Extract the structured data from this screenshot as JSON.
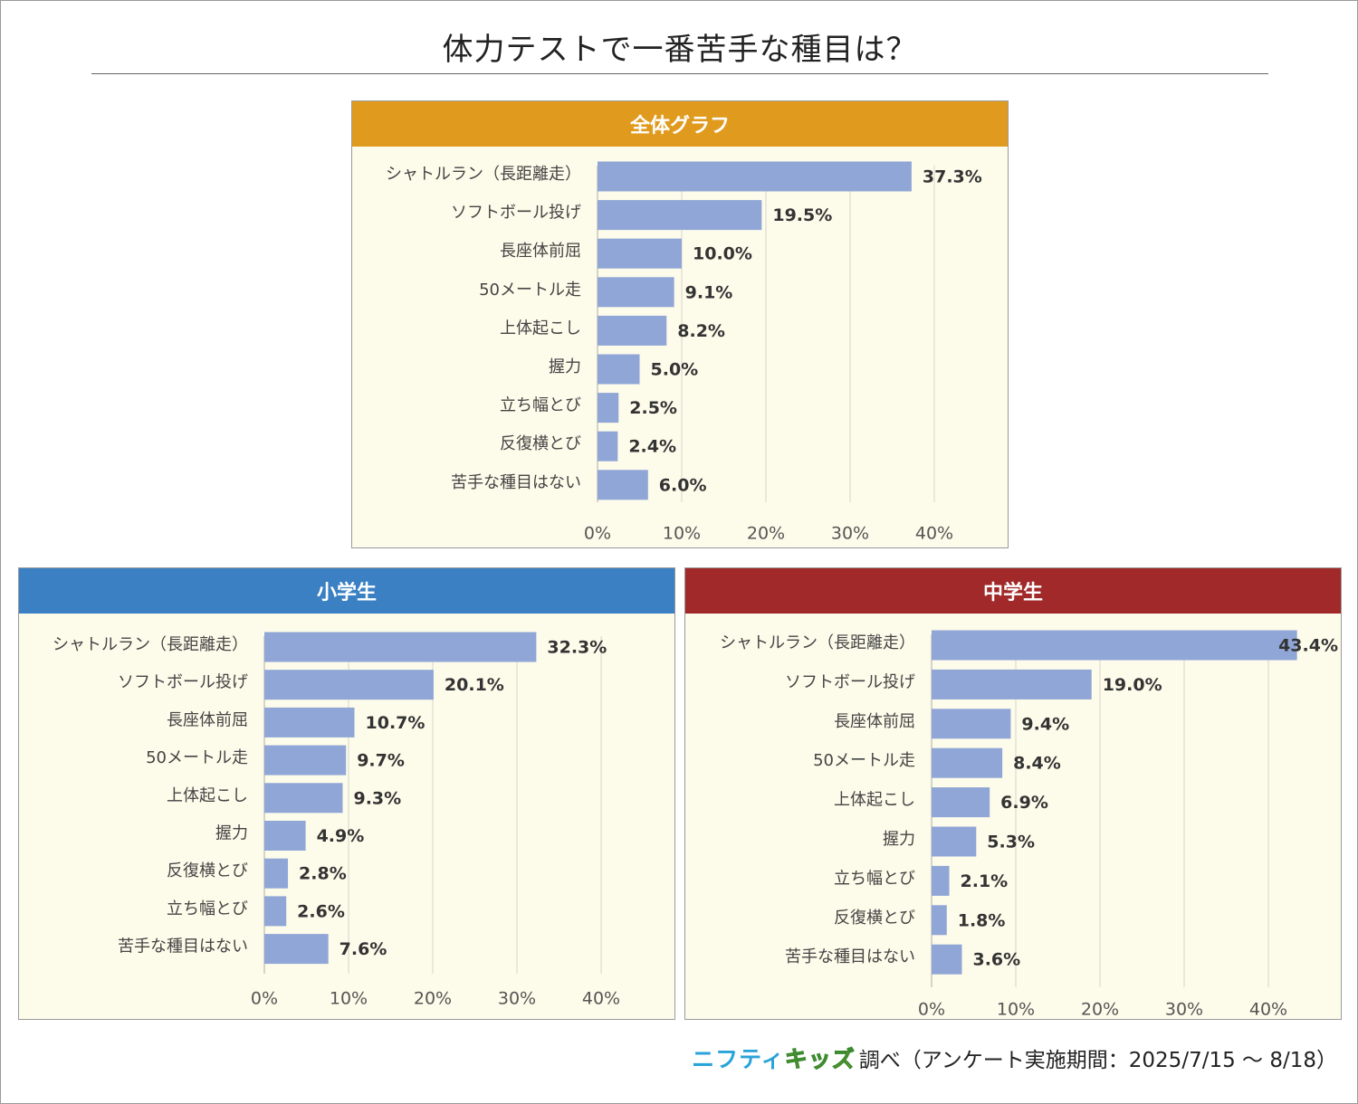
{
  "title": "体力テストで一番苦手な種目は？",
  "footer": {
    "brand_part1": "ニフティ",
    "brand_part2": "キッズ",
    "text": "調べ（アンケート実施期間：2025/7/15 ～ 8/18）"
  },
  "colors": {
    "bar": "#8fa6d6",
    "overall_header": "#e09b1f",
    "elementary_header": "#3a80c3",
    "junior_header": "#a1292a",
    "panel_bg": "#fdfbea",
    "grid": "#dedbd0"
  },
  "chart_data": [
    {
      "id": "overall",
      "type": "bar",
      "orientation": "horizontal",
      "title": "全体グラフ",
      "categories": [
        "シャトルラン（長距離走）",
        "ソフトボール投げ",
        "長座体前屈",
        "50メートル走",
        "上体起こし",
        "握力",
        "立ち幅とび",
        "反復横とび",
        "苦手な種目はない"
      ],
      "values": [
        37.3,
        19.5,
        10.0,
        9.1,
        8.2,
        5.0,
        2.5,
        2.4,
        6.0
      ],
      "value_labels": [
        "37.3%",
        "19.5%",
        "10.0%",
        "9.1%",
        "8.2%",
        "5.0%",
        "2.5%",
        "2.4%",
        "6.0%"
      ],
      "xlim": [
        0,
        40
      ],
      "ticks": [
        0,
        10,
        20,
        30,
        40
      ],
      "tick_labels": [
        "0%",
        "10%",
        "20%",
        "30%",
        "40%"
      ],
      "grid": true
    },
    {
      "id": "elementary",
      "type": "bar",
      "orientation": "horizontal",
      "title": "小学生",
      "categories": [
        "シャトルラン（長距離走）",
        "ソフトボール投げ",
        "長座体前屈",
        "50メートル走",
        "上体起こし",
        "握力",
        "反復横とび",
        "立ち幅とび",
        "苦手な種目はない"
      ],
      "values": [
        32.3,
        20.1,
        10.7,
        9.7,
        9.3,
        4.9,
        2.8,
        2.6,
        7.6
      ],
      "value_labels": [
        "32.3%",
        "20.1%",
        "10.7%",
        "9.7%",
        "9.3%",
        "4.9%",
        "2.8%",
        "2.6%",
        "7.6%"
      ],
      "xlim": [
        0,
        40
      ],
      "ticks": [
        0,
        10,
        20,
        30,
        40
      ],
      "tick_labels": [
        "0%",
        "10%",
        "20%",
        "30%",
        "40%"
      ],
      "grid": true
    },
    {
      "id": "junior",
      "type": "bar",
      "orientation": "horizontal",
      "title": "中学生",
      "categories": [
        "シャトルラン（長距離走）",
        "ソフトボール投げ",
        "長座体前屈",
        "50メートル走",
        "上体起こし",
        "握力",
        "立ち幅とび",
        "反復横とび",
        "苦手な種目はない"
      ],
      "values": [
        43.4,
        19.0,
        9.4,
        8.4,
        6.9,
        5.3,
        2.1,
        1.8,
        3.6
      ],
      "value_labels": [
        "43.4%",
        "19.0%",
        "9.4%",
        "8.4%",
        "6.9%",
        "5.3%",
        "2.1%",
        "1.8%",
        "3.6%"
      ],
      "xlim": [
        0,
        40
      ],
      "ticks": [
        0,
        10,
        20,
        30,
        40
      ],
      "tick_labels": [
        "0%",
        "10%",
        "20%",
        "30%",
        "40%"
      ],
      "grid": true
    }
  ]
}
